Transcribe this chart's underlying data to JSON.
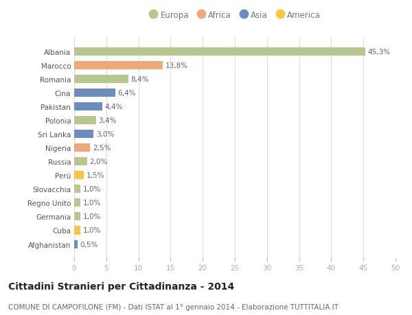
{
  "countries": [
    "Albania",
    "Marocco",
    "Romania",
    "Cina",
    "Pakistan",
    "Polonia",
    "Sri Lanka",
    "Nigeria",
    "Russia",
    "Perù",
    "Slovacchia",
    "Regno Unito",
    "Germania",
    "Cuba",
    "Afghanistan"
  ],
  "values": [
    45.3,
    13.8,
    8.4,
    6.4,
    4.4,
    3.4,
    3.0,
    2.5,
    2.0,
    1.5,
    1.0,
    1.0,
    1.0,
    1.0,
    0.5
  ],
  "labels": [
    "45,3%",
    "13,8%",
    "8,4%",
    "6,4%",
    "4,4%",
    "3,4%",
    "3,0%",
    "2,5%",
    "2,0%",
    "1,5%",
    "1,0%",
    "1,0%",
    "1,0%",
    "1,0%",
    "0,5%"
  ],
  "continents": [
    "Europa",
    "Africa",
    "Europa",
    "Asia",
    "Asia",
    "Europa",
    "Asia",
    "Africa",
    "Europa",
    "America",
    "Europa",
    "Europa",
    "Europa",
    "America",
    "Asia"
  ],
  "continent_colors": {
    "Europa": "#b5c98e",
    "Africa": "#f0a878",
    "Asia": "#6b8cbf",
    "America": "#f5c842"
  },
  "legend_order": [
    "Europa",
    "Africa",
    "Asia",
    "America"
  ],
  "xlim": [
    0,
    50
  ],
  "xticks": [
    0,
    5,
    10,
    15,
    20,
    25,
    30,
    35,
    40,
    45,
    50
  ],
  "title": "Cittadini Stranieri per Cittadinanza - 2014",
  "subtitle": "COMUNE DI CAMPOFILONE (FM) - Dati ISTAT al 1° gennaio 2014 - Elaborazione TUTTITALIA.IT",
  "background_color": "#ffffff",
  "bar_height": 0.6,
  "grid_color": "#dddddd",
  "label_fontsize": 7.5,
  "title_fontsize": 10.0,
  "subtitle_fontsize": 7.5,
  "legend_fontsize": 8.5,
  "ytick_fontsize": 7.5,
  "xtick_fontsize": 7.5
}
